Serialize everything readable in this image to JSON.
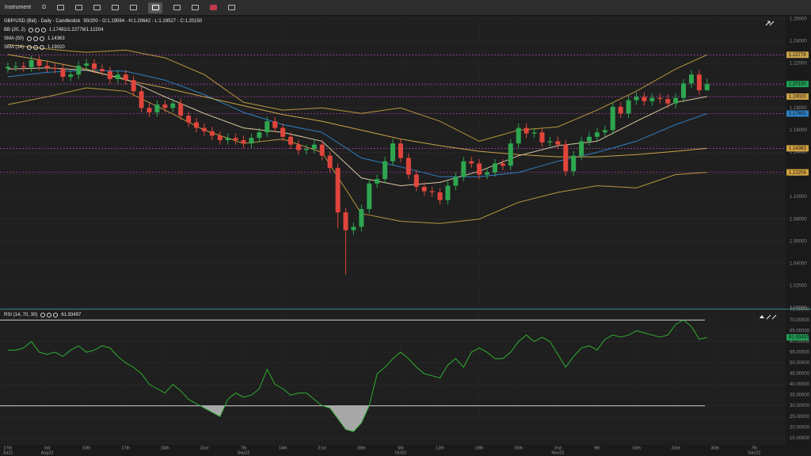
{
  "toolbar": {
    "instrument": "Instrument",
    "timeframe": "D"
  },
  "chart_data": [
    {
      "type": "candlestick",
      "title": "GBP/USD (Bid) - Daily - Candlestick",
      "info": "90/200 - O:1.19594 - H:1.20642 - L:1.19527 - C:1.20150",
      "up_color": "#2ea64f",
      "down_color": "#e0453c",
      "open": [
        1.2155,
        1.217,
        1.2175,
        1.2165,
        1.223,
        1.218,
        1.216,
        1.215,
        1.208,
        1.21,
        1.218,
        1.22,
        1.215,
        1.213,
        1.206,
        1.21,
        1.205,
        1.195,
        1.18,
        1.176,
        1.183,
        1.18,
        1.184,
        1.173,
        1.167,
        1.162,
        1.159,
        1.155,
        1.151,
        1.153,
        1.151,
        1.148,
        1.153,
        1.158,
        1.168,
        1.162,
        1.154,
        1.147,
        1.142,
        1.143,
        1.147,
        1.137,
        1.126,
        1.086,
        1.07,
        1.073,
        1.089,
        1.112,
        1.116,
        1.132,
        1.148,
        1.135,
        1.12,
        1.109,
        1.105,
        1.104,
        1.097,
        1.11,
        1.118,
        1.132,
        1.13,
        1.12,
        1.122,
        1.13,
        1.128,
        1.148,
        1.162,
        1.157,
        1.158,
        1.149,
        1.15,
        1.147,
        1.123,
        1.137,
        1.15,
        1.154,
        1.158,
        1.16,
        1.181,
        1.175,
        1.187,
        1.19,
        1.186,
        1.189,
        1.188,
        1.184,
        1.189,
        1.202,
        1.21,
        1.19594
      ],
      "high": [
        1.221,
        1.2215,
        1.2215,
        1.227,
        1.227,
        1.222,
        1.22,
        1.219,
        1.214,
        1.222,
        1.224,
        1.224,
        1.219,
        1.217,
        1.214,
        1.214,
        1.209,
        1.199,
        1.184,
        1.187,
        1.187,
        1.188,
        1.188,
        1.177,
        1.171,
        1.166,
        1.163,
        1.159,
        1.157,
        1.157,
        1.155,
        1.157,
        1.162,
        1.172,
        1.172,
        1.166,
        1.158,
        1.151,
        1.147,
        1.151,
        1.151,
        1.141,
        1.13,
        1.09,
        1.077,
        1.093,
        1.116,
        1.12,
        1.136,
        1.152,
        1.152,
        1.139,
        1.124,
        1.113,
        1.109,
        1.108,
        1.114,
        1.122,
        1.136,
        1.136,
        1.134,
        1.126,
        1.134,
        1.134,
        1.152,
        1.166,
        1.166,
        1.162,
        1.162,
        1.154,
        1.154,
        1.151,
        1.141,
        1.154,
        1.158,
        1.162,
        1.164,
        1.185,
        1.185,
        1.191,
        1.194,
        1.194,
        1.193,
        1.193,
        1.192,
        1.193,
        1.206,
        1.214,
        1.214,
        1.20642
      ],
      "low": [
        1.2115,
        1.213,
        1.2125,
        1.2125,
        1.214,
        1.212,
        1.211,
        1.204,
        1.204,
        1.206,
        1.214,
        1.211,
        1.209,
        1.202,
        1.202,
        1.201,
        1.191,
        1.176,
        1.172,
        1.172,
        1.176,
        1.176,
        1.169,
        1.163,
        1.158,
        1.155,
        1.151,
        1.147,
        1.147,
        1.147,
        1.144,
        1.144,
        1.149,
        1.154,
        1.158,
        1.15,
        1.143,
        1.138,
        1.138,
        1.139,
        1.133,
        1.122,
        1.072,
        1.03,
        1.066,
        1.069,
        1.085,
        1.108,
        1.112,
        1.128,
        1.131,
        1.116,
        1.105,
        1.101,
        1.1,
        1.093,
        1.093,
        1.106,
        1.114,
        1.126,
        1.116,
        1.116,
        1.118,
        1.124,
        1.124,
        1.144,
        1.153,
        1.153,
        1.145,
        1.145,
        1.143,
        1.119,
        1.119,
        1.133,
        1.146,
        1.15,
        1.154,
        1.156,
        1.171,
        1.171,
        1.183,
        1.182,
        1.182,
        1.184,
        1.18,
        1.18,
        1.185,
        1.198,
        1.1919,
        1.19527
      ],
      "close": [
        1.217,
        1.2175,
        1.2165,
        1.223,
        1.218,
        1.216,
        1.215,
        1.208,
        1.21,
        1.218,
        1.22,
        1.215,
        1.213,
        1.206,
        1.21,
        1.205,
        1.195,
        1.18,
        1.176,
        1.183,
        1.18,
        1.184,
        1.173,
        1.167,
        1.162,
        1.159,
        1.155,
        1.151,
        1.153,
        1.151,
        1.148,
        1.153,
        1.158,
        1.168,
        1.162,
        1.154,
        1.147,
        1.142,
        1.143,
        1.147,
        1.137,
        1.126,
        1.086,
        1.07,
        1.073,
        1.089,
        1.112,
        1.116,
        1.132,
        1.148,
        1.135,
        1.12,
        1.109,
        1.105,
        1.104,
        1.097,
        1.11,
        1.118,
        1.132,
        1.13,
        1.12,
        1.122,
        1.13,
        1.128,
        1.148,
        1.162,
        1.157,
        1.158,
        1.149,
        1.15,
        1.147,
        1.123,
        1.137,
        1.15,
        1.154,
        1.158,
        1.16,
        1.181,
        1.175,
        1.187,
        1.19,
        1.186,
        1.189,
        1.188,
        1.184,
        1.189,
        1.202,
        1.21,
        1.1959,
        1.2015
      ],
      "overlays": [
        {
          "color": "#b8963e",
          "x": [
            0,
            5,
            10,
            15,
            20,
            25,
            30,
            35,
            40,
            45,
            50,
            55,
            60,
            65,
            70,
            75,
            80,
            85,
            89
          ],
          "values": [
            1.237,
            1.233,
            1.23,
            1.232,
            1.225,
            1.21,
            1.185,
            1.178,
            1.18,
            1.175,
            1.18,
            1.168,
            1.15,
            1.16,
            1.163,
            1.178,
            1.195,
            1.215,
            1.22778
          ]
        },
        {
          "color": "#2f7fc1",
          "x": [
            0,
            5,
            10,
            15,
            20,
            25,
            30,
            35,
            40,
            45,
            50,
            55,
            60,
            65,
            70,
            75,
            80,
            85,
            89
          ],
          "values": [
            1.208,
            1.212,
            1.214,
            1.213,
            1.205,
            1.192,
            1.176,
            1.165,
            1.158,
            1.135,
            1.127,
            1.118,
            1.118,
            1.122,
            1.132,
            1.14,
            1.15,
            1.165,
            1.17491
          ]
        },
        {
          "color": "#b8963e",
          "x": [
            0,
            5,
            10,
            15,
            20,
            25,
            30,
            35,
            40,
            45,
            50,
            55,
            60,
            65,
            70,
            75,
            80,
            85,
            89
          ],
          "values": [
            1.183,
            1.19,
            1.198,
            1.195,
            1.178,
            1.16,
            1.148,
            1.152,
            1.14,
            1.085,
            1.078,
            1.076,
            1.08,
            1.095,
            1.104,
            1.11,
            1.108,
            1.12,
            1.12204
          ]
        },
        {
          "color": "#c9a24a",
          "x": [
            0,
            5,
            10,
            15,
            20,
            25,
            30,
            35,
            40,
            45,
            50,
            55,
            60,
            65,
            70,
            75,
            80,
            85,
            89
          ],
          "values": [
            1.228,
            1.222,
            1.215,
            1.205,
            1.198,
            1.19,
            1.182,
            1.174,
            1.168,
            1.16,
            1.152,
            1.146,
            1.141,
            1.138,
            1.136,
            1.136,
            1.138,
            1.141,
            1.14363
          ]
        },
        {
          "color": "#d8c9a0",
          "x": [
            0,
            5,
            10,
            15,
            20,
            25,
            30,
            35,
            40,
            45,
            50,
            55,
            60,
            65,
            70,
            75,
            80,
            85,
            89
          ],
          "values": [
            1.215,
            1.216,
            1.214,
            1.206,
            1.19,
            1.175,
            1.162,
            1.158,
            1.15,
            1.117,
            1.11,
            1.113,
            1.123,
            1.137,
            1.146,
            1.15,
            1.168,
            1.185,
            1.1902
          ]
        }
      ],
      "legend": [
        {
          "name": "BB (20, 2)",
          "value": "1.17491/1.22778/1.12204"
        },
        {
          "name": "SMA (50)",
          "value": "1.14363"
        },
        {
          "name": "SMA (14)",
          "value": "1.19020"
        }
      ],
      "markers": [
        {
          "value": 1.22778,
          "label": "1.22778",
          "color": "#c9a24a"
        },
        {
          "value": 1.2015,
          "label": "1.20150",
          "color": "#1f9d55"
        },
        {
          "value": 1.1902,
          "label": "1.19020",
          "color": "#c9a24a"
        },
        {
          "value": 1.17491,
          "label": "1.17491",
          "color": "#2f7fc1"
        },
        {
          "value": 1.14363,
          "label": "1.14363",
          "color": "#d0a040"
        },
        {
          "value": 1.12204,
          "label": "1.12204",
          "color": "#d0a040"
        }
      ],
      "xlim": [
        -1,
        99
      ],
      "ylim": [
        1.0,
        1.26
      ],
      "yticks": [
        {
          "value": 1.0,
          "label": "1.00000"
        },
        {
          "value": 1.02,
          "label": "1.02000"
        },
        {
          "value": 1.04,
          "label": "1.04000"
        },
        {
          "value": 1.06,
          "label": "1.06000"
        },
        {
          "value": 1.08,
          "label": "1.08000"
        },
        {
          "value": 1.1,
          "label": "1.10000"
        },
        {
          "value": 1.12,
          "label": "1.12000"
        },
        {
          "value": 1.14,
          "label": "1.14000"
        },
        {
          "value": 1.16,
          "label": "1.16000"
        },
        {
          "value": 1.18,
          "label": "1.18000"
        },
        {
          "value": 1.2,
          "label": "1.20000"
        },
        {
          "value": 1.22,
          "label": "1.22000"
        },
        {
          "value": 1.24,
          "label": "1.24000"
        },
        {
          "value": 1.26,
          "label": "1.26000"
        }
      ],
      "xticks": [
        {
          "value": 0,
          "label": "27th",
          "month": "Jul22"
        },
        {
          "value": 5,
          "label": "3rd",
          "month": "Aug22"
        },
        {
          "value": 10,
          "label": "10th"
        },
        {
          "value": 15,
          "label": "17th"
        },
        {
          "value": 20,
          "label": "24th"
        },
        {
          "value": 25,
          "label": "31st"
        },
        {
          "value": 30,
          "label": "7th",
          "month": "Sep22"
        },
        {
          "value": 35,
          "label": "14th"
        },
        {
          "value": 40,
          "label": "21st"
        },
        {
          "value": 45,
          "label": "28th"
        },
        {
          "value": 50,
          "label": "5th",
          "month": "Oct22"
        },
        {
          "value": 55,
          "label": "12th"
        },
        {
          "value": 60,
          "label": "19th"
        },
        {
          "value": 65,
          "label": "26th"
        },
        {
          "value": 70,
          "label": "2nd",
          "month": "Nov22"
        },
        {
          "value": 75,
          "label": "9th"
        },
        {
          "value": 80,
          "label": "16th"
        },
        {
          "value": 85,
          "label": "23rd"
        },
        {
          "value": 90,
          "label": "30th"
        },
        {
          "value": 95,
          "label": "7th",
          "month": "Dec22"
        }
      ],
      "grid": true
    },
    {
      "type": "line",
      "title": "RSI (14, 70, 30)",
      "value_label": "61.93497",
      "color": "#2fae2f",
      "fill_color": "#a8a8a8",
      "label_color": "#1f9d55",
      "values": [
        56,
        56,
        57,
        60,
        55,
        54,
        55,
        53,
        56,
        58,
        55,
        56,
        58,
        57,
        53,
        50,
        48,
        45,
        40,
        38,
        36,
        40,
        37,
        33,
        31,
        29,
        27,
        25,
        33,
        36,
        34,
        35,
        38,
        47,
        40,
        38,
        35,
        36,
        36,
        33,
        30,
        29,
        24,
        19,
        18,
        22,
        30,
        45,
        48,
        52,
        55,
        52,
        48,
        45,
        44,
        43,
        49,
        52,
        48,
        55,
        57,
        55,
        52,
        52,
        55,
        60,
        63,
        60,
        62,
        60,
        54,
        48,
        53,
        57,
        58,
        56,
        61,
        63,
        62,
        63,
        65,
        64,
        63,
        62,
        63,
        68,
        70,
        67,
        61,
        61.93497
      ],
      "levels": [
        70,
        30
      ],
      "ylim": [
        14,
        76
      ],
      "yticks": [
        {
          "value": 15,
          "label": "15.00000"
        },
        {
          "value": 20,
          "label": "20.00000"
        },
        {
          "value": 25,
          "label": "25.00000"
        },
        {
          "value": 30,
          "label": "30.00000"
        },
        {
          "value": 35,
          "label": "35.00000"
        },
        {
          "value": 40,
          "label": "40.00000"
        },
        {
          "value": 45,
          "label": "45.00000"
        },
        {
          "value": 50,
          "label": "50.00000"
        },
        {
          "value": 55,
          "label": "55.00000"
        },
        {
          "value": 60,
          "label": "60.00000"
        },
        {
          "value": 65,
          "label": "65.00000"
        },
        {
          "value": 70,
          "label": "70.00000"
        },
        {
          "value": 75,
          "label": "75.00000"
        }
      ]
    }
  ]
}
